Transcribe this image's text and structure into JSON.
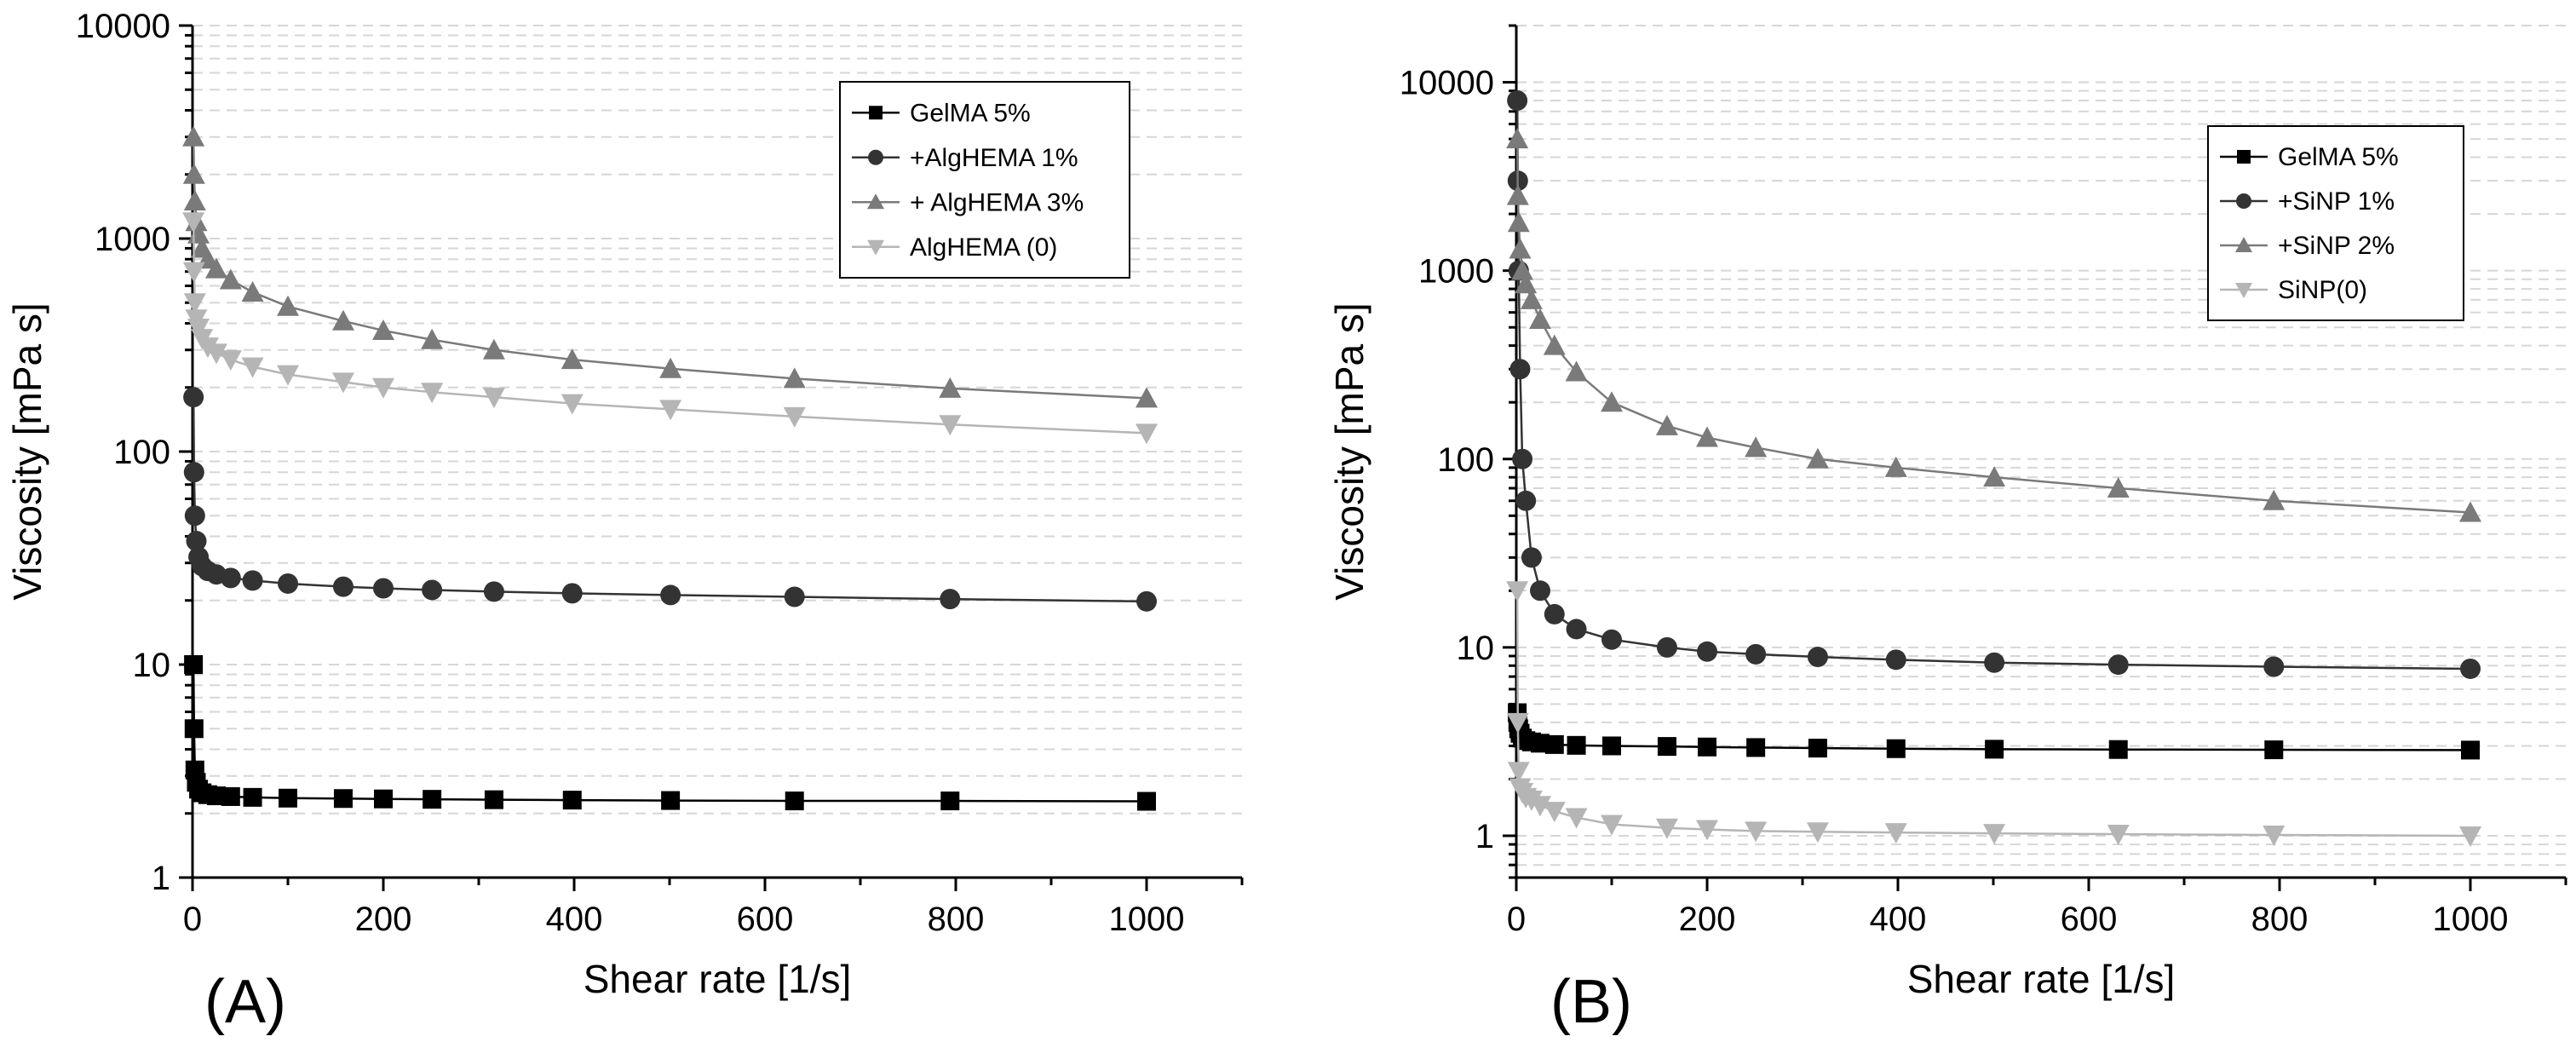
{
  "chart_data": [
    {
      "type": "line",
      "panel_label": "(A)",
      "title": "",
      "xlabel": "Shear rate [1/s]",
      "ylabel": "Viscosity [mPa s]",
      "xlim": [
        0,
        1100
      ],
      "ylim": [
        1,
        10000
      ],
      "yscale": "log",
      "grid": true,
      "legend_position": "top-right",
      "x_ticks": [
        "0",
        "200",
        "400",
        "600",
        "800",
        "1000"
      ],
      "y_ticks": [
        "1",
        "10",
        "100",
        "1000",
        "10000"
      ],
      "x": [
        1,
        1.6,
        2.5,
        4,
        6.3,
        10,
        16,
        25,
        40,
        63,
        100,
        158,
        200,
        251,
        316,
        398,
        501,
        631,
        794,
        1000
      ],
      "series": [
        {
          "name": "GelMA 5%",
          "marker": "square",
          "color": "#000000",
          "values": [
            10,
            5,
            3.2,
            2.8,
            2.6,
            2.5,
            2.45,
            2.42,
            2.4,
            2.38,
            2.36,
            2.35,
            2.34,
            2.33,
            2.32,
            2.31,
            2.3,
            2.29,
            2.29,
            2.28
          ]
        },
        {
          "name": "+AlgHEMA 1%",
          "marker": "circle",
          "color": "#333333",
          "values": [
            180,
            80,
            50,
            38,
            32,
            29,
            27.5,
            26.5,
            25.5,
            24.8,
            24,
            23.2,
            22.8,
            22.4,
            22,
            21.6,
            21.2,
            20.8,
            20.3,
            19.8
          ]
        },
        {
          "name": "+ AlgHEMA 3%",
          "marker": "triangle-up",
          "color": "#7a7a7a",
          "values": [
            3000,
            2000,
            1500,
            1200,
            1050,
            900,
            800,
            720,
            640,
            560,
            480,
            410,
            370,
            335,
            300,
            270,
            245,
            220,
            198,
            178
          ]
        },
        {
          "name": "AlgHEMA (0)",
          "marker": "triangle-down",
          "color": "#b5b5b5",
          "values": [
            1200,
            700,
            500,
            420,
            380,
            340,
            310,
            290,
            270,
            250,
            230,
            212,
            200,
            190,
            180,
            168,
            158,
            146,
            134,
            122
          ]
        }
      ]
    },
    {
      "type": "line",
      "panel_label": "(B)",
      "title": "",
      "xlabel": "Shear rate [1/s]",
      "ylabel": "Viscosity [mPa s]",
      "xlim": [
        0,
        1100
      ],
      "ylim": [
        0.6,
        20000
      ],
      "yscale": "log",
      "grid": true,
      "legend_position": "top-right",
      "x_ticks": [
        "0",
        "200",
        "400",
        "600",
        "800",
        "1000"
      ],
      "y_ticks": [
        "1",
        "10",
        "100",
        "1000",
        "10000"
      ],
      "x": [
        1,
        1.6,
        2.5,
        4,
        6.3,
        10,
        16,
        25,
        40,
        63,
        100,
        158,
        200,
        251,
        316,
        398,
        501,
        631,
        794,
        1000
      ],
      "series": [
        {
          "name": "GelMA 5%",
          "marker": "square",
          "color": "#000000",
          "values": [
            4.5,
            4,
            3.7,
            3.5,
            3.3,
            3.2,
            3.15,
            3.1,
            3.05,
            3.02,
            3,
            2.98,
            2.96,
            2.94,
            2.92,
            2.9,
            2.88,
            2.87,
            2.86,
            2.85
          ]
        },
        {
          "name": "+SiNP 1%",
          "marker": "circle",
          "color": "#333333",
          "values": [
            8000,
            3000,
            1000,
            300,
            100,
            60,
            30,
            20,
            15,
            12.5,
            11,
            10,
            9.5,
            9.2,
            8.9,
            8.6,
            8.3,
            8.1,
            7.9,
            7.7
          ]
        },
        {
          "name": "+SiNP 2%",
          "marker": "triangle-up",
          "color": "#7a7a7a",
          "values": [
            5000,
            2500,
            1800,
            1300,
            1000,
            850,
            700,
            550,
            400,
            290,
            200,
            150,
            130,
            115,
            100,
            90,
            80,
            70,
            60,
            52
          ]
        },
        {
          "name": "SiNP(0)",
          "marker": "triangle-down",
          "color": "#b5b5b5",
          "values": [
            20,
            4,
            2.2,
            1.8,
            1.7,
            1.6,
            1.55,
            1.45,
            1.35,
            1.25,
            1.15,
            1.1,
            1.08,
            1.06,
            1.05,
            1.04,
            1.03,
            1.02,
            1.01,
            1.0
          ]
        }
      ]
    }
  ]
}
